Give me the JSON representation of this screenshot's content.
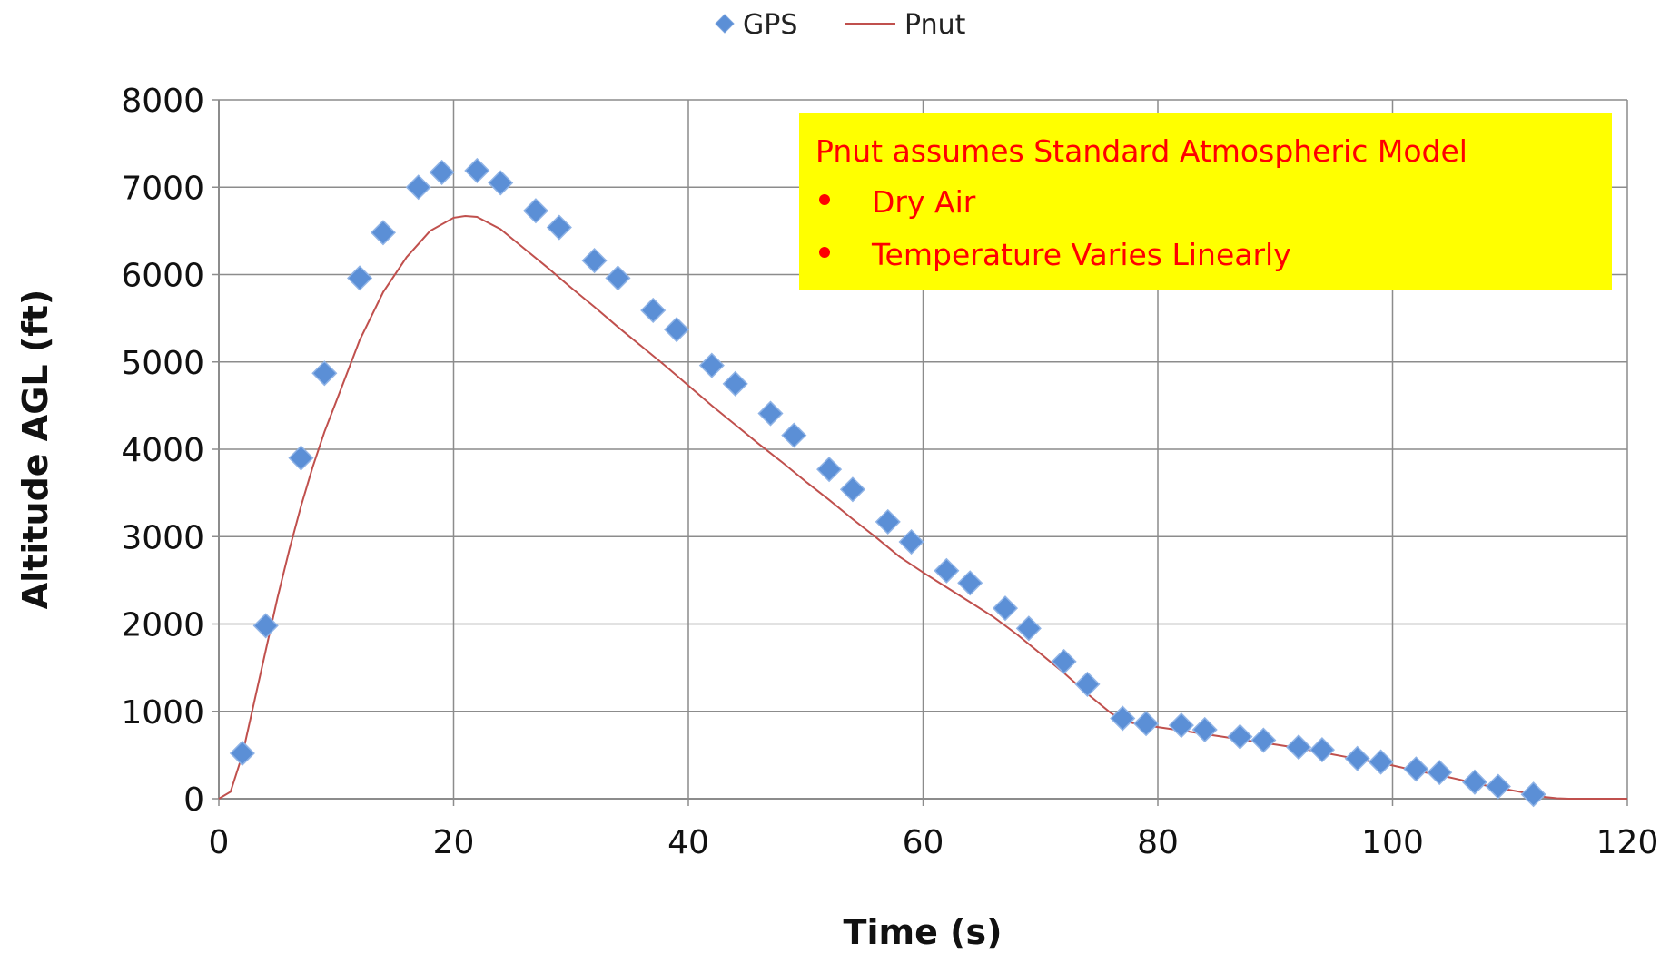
{
  "chart_data": {
    "type": "scatter",
    "title": "",
    "xlabel": "Time (s)",
    "ylabel": "Altitude AGL (ft)",
    "xlim": [
      0,
      120
    ],
    "ylim": [
      0,
      8000
    ],
    "x_ticks": [
      "0",
      "20",
      "40",
      "60",
      "80",
      "100",
      "120"
    ],
    "y_ticks": [
      "0",
      "1000",
      "2000",
      "3000",
      "4000",
      "5000",
      "6000",
      "7000",
      "8000"
    ],
    "grid": true,
    "legend_position": "top-center",
    "series": [
      {
        "name": "GPS",
        "type": "scatter",
        "marker": "diamond",
        "color": "#5b8fd6",
        "x": [
          2,
          4,
          7,
          9,
          12,
          14,
          17,
          19,
          22,
          24,
          27,
          29,
          32,
          34,
          37,
          39,
          42,
          44,
          47,
          49,
          52,
          54,
          57,
          59,
          62,
          64,
          67,
          69,
          72,
          74,
          77,
          79,
          82,
          84,
          87,
          89,
          92,
          94,
          97,
          99,
          102,
          104,
          107,
          109,
          112
        ],
        "y": [
          520,
          1980,
          3900,
          4870,
          5960,
          6480,
          7000,
          7170,
          7190,
          7050,
          6730,
          6540,
          6160,
          5960,
          5590,
          5370,
          4960,
          4750,
          4410,
          4160,
          3770,
          3540,
          3170,
          2940,
          2610,
          2470,
          2180,
          1950,
          1570,
          1310,
          920,
          860,
          840,
          790,
          710,
          670,
          590,
          560,
          460,
          420,
          340,
          300,
          190,
          140,
          50
        ]
      },
      {
        "name": "Pnut",
        "type": "line",
        "color": "#c0504d",
        "x": [
          0,
          1,
          2,
          3,
          4,
          5,
          6,
          7,
          8,
          9,
          10,
          12,
          14,
          16,
          18,
          20,
          21,
          22,
          24,
          26,
          28,
          30,
          32,
          34,
          36,
          38,
          40,
          42,
          44,
          46,
          48,
          50,
          52,
          54,
          56,
          58,
          60,
          62,
          64,
          66,
          68,
          70,
          72,
          74,
          76,
          77,
          78,
          80,
          82,
          84,
          86,
          88,
          90,
          92,
          94,
          96,
          98,
          100,
          102,
          104,
          106,
          108,
          110,
          112,
          113,
          114,
          115,
          120
        ],
        "y": [
          0,
          80,
          500,
          1100,
          1700,
          2300,
          2850,
          3350,
          3800,
          4200,
          4550,
          5250,
          5800,
          6200,
          6500,
          6650,
          6670,
          6660,
          6520,
          6300,
          6080,
          5850,
          5630,
          5400,
          5180,
          4960,
          4730,
          4500,
          4280,
          4060,
          3850,
          3630,
          3420,
          3200,
          2990,
          2770,
          2590,
          2420,
          2250,
          2080,
          1880,
          1660,
          1440,
          1200,
          980,
          900,
          860,
          820,
          780,
          740,
          700,
          660,
          620,
          580,
          530,
          480,
          430,
          380,
          320,
          270,
          210,
          150,
          100,
          50,
          20,
          5,
          0,
          0
        ]
      }
    ],
    "annotation": {
      "title": "Pnut assumes Standard Atmospheric Model",
      "bullets": [
        "Dry Air",
        "Temperature Varies Linearly"
      ],
      "background": "#ffff00",
      "text_color": "#ff0000"
    }
  }
}
